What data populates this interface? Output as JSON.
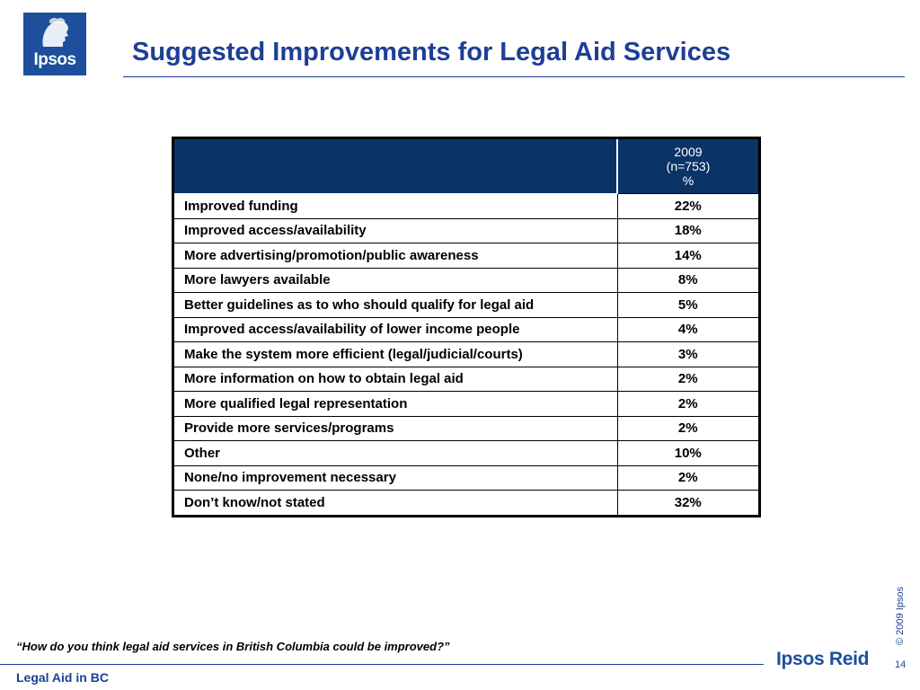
{
  "header": {
    "logo_text": "Ipsos",
    "title": "Suggested Improvements for Legal Aid Services"
  },
  "table": {
    "column_header": {
      "line1": "2009",
      "line2": "(n=753)",
      "line3": "%"
    },
    "rows": [
      {
        "label": "Improved funding",
        "value": "22%"
      },
      {
        "label": "Improved access/availability",
        "value": "18%"
      },
      {
        "label": "More advertising/promotion/public awareness",
        "value": "14%"
      },
      {
        "label": "More lawyers available",
        "value": "8%"
      },
      {
        "label": "Better guidelines as to who should qualify for legal aid",
        "value": "5%"
      },
      {
        "label": "Improved access/availability of lower income people",
        "value": "4%"
      },
      {
        "label": "Make the system more efficient (legal/judicial/courts)",
        "value": "3%"
      },
      {
        "label": "More information on how to obtain legal aid",
        "value": "2%"
      },
      {
        "label": "More qualified legal representation",
        "value": "2%"
      },
      {
        "label": "Provide more services/programs",
        "value": "2%"
      },
      {
        "label": "Other",
        "value": "10%"
      },
      {
        "label": "None/no improvement necessary",
        "value": "2%"
      },
      {
        "label": "Don’t know/not stated",
        "value": "32%"
      }
    ]
  },
  "question": "“How do you think legal aid services in British Columbia could be improved?”",
  "footer": {
    "label": "Legal Aid in BC",
    "brand": "Ipsos Reid",
    "copyright": "© 2009 Ipsos",
    "page_number": "14"
  },
  "colors": {
    "brand_blue": "#1d4f9c",
    "title_blue": "#1d3f94",
    "table_header": "#0a3366"
  }
}
